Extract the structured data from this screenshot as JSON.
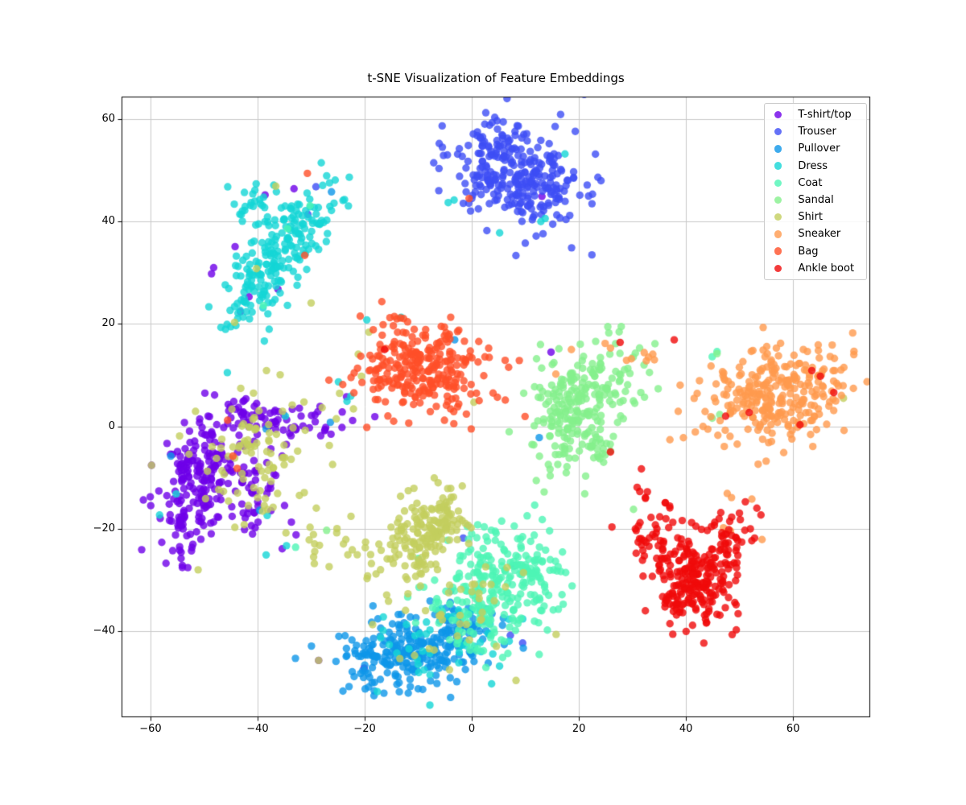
{
  "figure": {
    "background": "#FFFFFF"
  },
  "chart_data": {
    "type": "scatter",
    "title": "t-SNE Visualization of Feature Embeddings",
    "xlabel": "",
    "ylabel": "",
    "xlim": [
      -65.4,
      74.4
    ],
    "ylim": [
      -56.8,
      64.4
    ],
    "xticks": [
      -60,
      -40,
      -20,
      0,
      20,
      40,
      60
    ],
    "yticks": [
      -40,
      -20,
      0,
      20,
      40,
      60
    ],
    "grid": true,
    "grid_color": "#C9C9C9",
    "frame_color": "#000000",
    "tick_label_color": "#000000",
    "legend_position": "upper right",
    "marker_alpha": 0.8,
    "marker_radius_px": 4.7,
    "seed": 1337,
    "series": [
      {
        "label": "T-shirt/top",
        "color": "#6E00E8",
        "clusters": [
          {
            "cx": -51,
            "cy": -11,
            "sx": 3.4,
            "sy": 7.0,
            "rot": -0.3,
            "n": 215
          },
          {
            "cx": -36,
            "cy": 1.2,
            "sx": 5.0,
            "sy": 2.0,
            "rot": -0.1,
            "n": 70
          },
          {
            "cx": -40,
            "cy": -13,
            "sx": 3.2,
            "sy": 4.5,
            "rot": -0.3,
            "n": 45
          }
        ],
        "points": [
          [
            -48.2,
            31.0
          ],
          [
            -48.6,
            29.8
          ],
          [
            -43.2,
            22.4
          ],
          [
            -41.6,
            25.3
          ],
          [
            -38.6,
            45.2
          ],
          [
            -33.2,
            46.4
          ],
          [
            -44.2,
            35.1
          ],
          [
            -36.2,
            26.8
          ],
          [
            13.1,
            44.9
          ],
          [
            14.8,
            14.5
          ],
          [
            -18.1,
            1.9
          ],
          [
            -20.1,
            -47.2
          ],
          [
            8.0,
            -27.2
          ],
          [
            -59.8,
            -7.6
          ],
          [
            -28.6,
            -45.7
          ],
          [
            -35.4,
            -23.9
          ]
        ]
      },
      {
        "label": "Trouser",
        "color": "#3D4DF5",
        "clusters": [
          {
            "cx": 8,
            "cy": 49.8,
            "sx": 6.4,
            "sy": 4.9,
            "rot": -0.3,
            "n": 300
          }
        ],
        "points": [
          [
            17.6,
            40.4
          ],
          [
            18.3,
            41.2
          ],
          [
            -29.1,
            46.8
          ],
          [
            -30.6,
            41.4
          ],
          [
            -1.6,
            -21.8
          ],
          [
            7.2,
            -40.8
          ],
          [
            9.5,
            -42.3
          ]
        ]
      },
      {
        "label": "Pullover",
        "color": "#0E96E8",
        "clusters": [
          {
            "cx": -11.5,
            "cy": -44,
            "sx": 6.8,
            "sy": 3.8,
            "rot": 0.15,
            "n": 250
          },
          {
            "cx": -2,
            "cy": -39.5,
            "sx": 3.0,
            "sy": 2.5,
            "rot": 0,
            "n": 40
          }
        ],
        "points": [
          [
            -3.2,
            16.9
          ],
          [
            12.6,
            -2.2
          ],
          [
            -26.2,
            45.8
          ],
          [
            -56.2,
            -5.8
          ],
          [
            -38.4,
            -0.5
          ],
          [
            -26.4,
            0.8
          ],
          [
            -39.6,
            -16.4
          ]
        ]
      },
      {
        "label": "Dress",
        "color": "#14D6D6",
        "clusters": [
          {
            "cx": -36.5,
            "cy": 33,
            "sx": 3.0,
            "sy": 8.0,
            "rot": -0.58,
            "n": 220
          },
          {
            "cx": -41.5,
            "cy": 43.5,
            "sx": 2.2,
            "sy": 2.2,
            "rot": 0,
            "n": 25
          },
          {
            "cx": -6,
            "cy": -42,
            "sx": 7.0,
            "sy": 4.0,
            "rot": 0.1,
            "n": 45
          }
        ],
        "points": [
          [
            -4.4,
            43.7
          ],
          [
            17.4,
            53.2
          ],
          [
            13.7,
            40.6
          ],
          [
            12.9,
            40.0
          ],
          [
            5.2,
            37.8
          ],
          [
            -3.3,
            44.2
          ],
          [
            -24.9,
            8.7
          ],
          [
            -22.6,
            5.9
          ],
          [
            -23.3,
            4.9
          ],
          [
            -19.6,
            20.8
          ],
          [
            -13.2,
            21.3
          ],
          [
            -55.2,
            -13.2
          ],
          [
            -58.3,
            -17.3
          ],
          [
            -38.2,
            -17.4
          ],
          [
            -34.6,
            -23.3
          ],
          [
            -38.4,
            -25.1
          ],
          [
            -34.8,
            2.0
          ]
        ]
      },
      {
        "label": "Coat",
        "color": "#4DF5B5",
        "clusters": [
          {
            "cx": 3.5,
            "cy": -31.5,
            "sx": 5.2,
            "sy": 6.8,
            "rot": -0.55,
            "n": 235
          },
          {
            "cx": 11.5,
            "cy": -30,
            "sx": 3.0,
            "sy": 4.5,
            "rot": -0.4,
            "n": 45
          }
        ],
        "points": [
          [
            -34.4,
            38.6
          ],
          [
            -30.2,
            43.1
          ],
          [
            45.8,
            14.6
          ],
          [
            44.9,
            13.6
          ],
          [
            -38.9,
            23.6
          ],
          [
            -32.9,
            -23.6
          ]
        ]
      },
      {
        "label": "Sandal",
        "color": "#85F08C",
        "clusters": [
          {
            "cx": 20.5,
            "cy": 4.5,
            "sx": 4.2,
            "sy": 6.6,
            "rot": -0.5,
            "n": 245
          },
          {
            "cx": 23.5,
            "cy": -4.6,
            "sx": 1.2,
            "sy": 1.8,
            "rot": 0,
            "n": 14
          }
        ],
        "points": [
          [
            45.8,
            14.2
          ],
          [
            46.3,
            2.3
          ],
          [
            44.9,
            1.6
          ],
          [
            30.2,
            -16.2
          ],
          [
            25.9,
            -4.8
          ],
          [
            -27.1,
            -20.3
          ]
        ]
      },
      {
        "label": "Shirt",
        "color": "#C3CE5E",
        "clusters": [
          {
            "cx": -8.5,
            "cy": -21,
            "sx": 3.2,
            "sy": 5.5,
            "rot": -0.65,
            "n": 175
          },
          {
            "cx": -41,
            "cy": -5,
            "sx": 6.5,
            "sy": 7.0,
            "rot": -0.3,
            "n": 95
          },
          {
            "cx": -2,
            "cy": -36,
            "sx": 8.0,
            "sy": 6.0,
            "rot": 0,
            "n": 45
          },
          {
            "cx": -27,
            "cy": -23,
            "sx": 2.2,
            "sy": 2.8,
            "rot": -0.5,
            "n": 14
          }
        ],
        "points": [
          [
            -21.2,
            14.1
          ],
          [
            -20.6,
            9.8
          ],
          [
            -22.1,
            3.4
          ],
          [
            -19.2,
            18.4
          ],
          [
            0.4,
            4.7
          ],
          [
            -36.6,
            46.9
          ],
          [
            -40.2,
            30.8
          ],
          [
            -44.3,
            20.3
          ],
          [
            -30.0,
            24.1
          ],
          [
            69.4,
            5.5
          ],
          [
            -59.8,
            -7.6
          ],
          [
            -28.6,
            -45.7
          ],
          [
            -30.2,
            -19.7
          ],
          [
            -34.7,
            -20.8
          ],
          [
            -29.4,
            -26.8
          ]
        ]
      },
      {
        "label": "Sneaker",
        "color": "#FF9A4D",
        "clusters": [
          {
            "cx": 57.5,
            "cy": 6.2,
            "sx": 6.5,
            "sy": 4.6,
            "rot": 0.2,
            "n": 285
          }
        ],
        "points": [
          [
            47.7,
            -13.1
          ],
          [
            48.5,
            -13.9
          ],
          [
            47.0,
            -19.8
          ],
          [
            48.3,
            -20.4
          ],
          [
            54.2,
            -22.1
          ],
          [
            52.3,
            -14.2
          ],
          [
            33.0,
            13.5
          ],
          [
            32.2,
            14.4
          ],
          [
            33.8,
            14.1
          ],
          [
            32.6,
            12.8
          ],
          [
            34.1,
            13.0
          ],
          [
            29.8,
            13.2
          ],
          [
            18.6,
            15.0
          ],
          [
            24.9,
            16.2
          ],
          [
            25.9,
            15.3
          ],
          [
            15.7,
            10.2
          ],
          [
            28.9,
            12.9
          ]
        ]
      },
      {
        "label": "Bag",
        "color": "#FF4F28",
        "clusters": [
          {
            "cx": -9.5,
            "cy": 11.5,
            "sx": 6.0,
            "sy": 4.4,
            "rot": -0.15,
            "n": 275
          }
        ],
        "points": [
          [
            -0.5,
            44.5
          ],
          [
            -30.7,
            49.4
          ],
          [
            -31.2,
            33.4
          ],
          [
            -45.6,
            1.2
          ],
          [
            -44.6,
            -5.8
          ],
          [
            -43.8,
            -8.2
          ],
          [
            -0.1,
            -0.5
          ],
          [
            -19.6,
            -0.2
          ]
        ]
      },
      {
        "label": "Ankle boot",
        "color": "#F00A0A",
        "clusters": [
          {
            "cx": 37,
            "cy": -25.5,
            "sx": 3.0,
            "sy": 6.5,
            "rot": 0.45,
            "n": 95
          },
          {
            "cx": 47,
            "cy": -23.5,
            "sx": 2.5,
            "sy": 6.0,
            "rot": -0.5,
            "n": 80
          },
          {
            "cx": 42,
            "cy": -31.5,
            "sx": 4.2,
            "sy": 3.5,
            "rot": 0,
            "n": 130
          }
        ],
        "points": [
          [
            63.5,
            10.9
          ],
          [
            67.6,
            6.6
          ],
          [
            51.8,
            2.7
          ],
          [
            47.4,
            2.0
          ],
          [
            61.3,
            0.3
          ],
          [
            65.1,
            9.8
          ],
          [
            27.7,
            16.4
          ],
          [
            25.9,
            -5.0
          ],
          [
            37.8,
            16.9
          ],
          [
            -16.3,
            15.0
          ]
        ]
      }
    ]
  }
}
